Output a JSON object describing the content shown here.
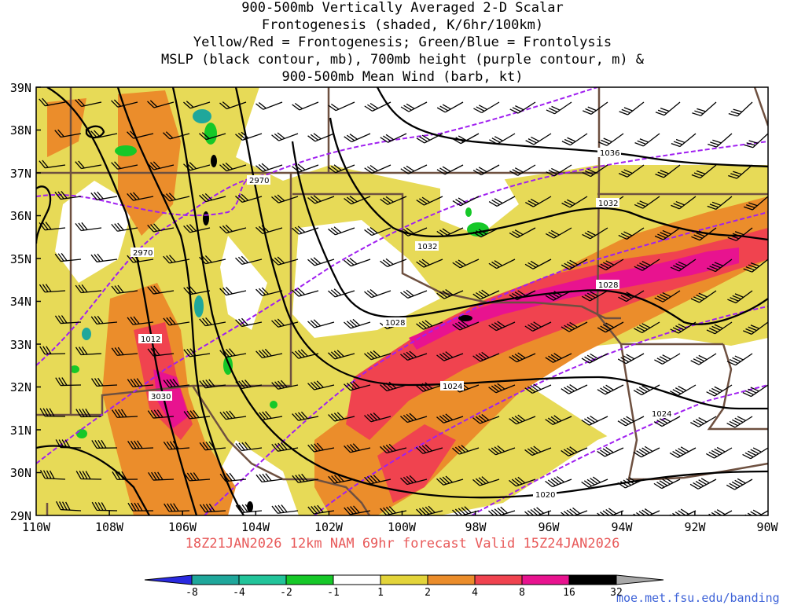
{
  "title": {
    "line1": "900-500mb Vertically Averaged 2-D Scalar",
    "line2": "Frontogenesis (shaded, K/6hr/100km)",
    "line3": "Yellow/Red = Frontogenesis;  Green/Blue = Frontolysis",
    "line4": "MSLP (black contour, mb), 700mb height (purple contour, m) &",
    "line5": "900-500mb Mean Wind (barb, kt)"
  },
  "valid_text": "18Z21JAN2026 12km NAM 69hr forecast Valid 15Z24JAN2026",
  "credit": "moe.met.fsu.edu/banding",
  "lat_labels": [
    "39N",
    "38N",
    "37N",
    "36N",
    "35N",
    "34N",
    "33N",
    "32N",
    "31N",
    "30N",
    "29N"
  ],
  "lon_labels": [
    "110W",
    "108W",
    "106W",
    "104W",
    "102W",
    "100W",
    "98W",
    "96W",
    "94W",
    "92W",
    "90W"
  ],
  "colorbar": {
    "labels": [
      "-8",
      "-4",
      "-2",
      "-1",
      "1",
      "2",
      "4",
      "8",
      "16",
      "32"
    ],
    "colors": [
      "#2a2ae0",
      "#1fa79b",
      "#22c49a",
      "#16c828",
      "#ffffff",
      "#e3d43a",
      "#eb8d2b",
      "#f0434f",
      "#e8138f",
      "#000000",
      "#a8a8a8"
    ]
  },
  "mslp_labels": [
    "1036",
    "1032",
    "1032",
    "1028",
    "1028",
    "1024",
    "1024",
    "1020",
    "1012"
  ],
  "height_labels": [
    "2970",
    "2970",
    "3030"
  ],
  "colors": {
    "mslp": "#000000",
    "height": "#a020f0",
    "border": "#6e5040",
    "valid": "#e85a5a",
    "credit": "#3e63d8"
  }
}
